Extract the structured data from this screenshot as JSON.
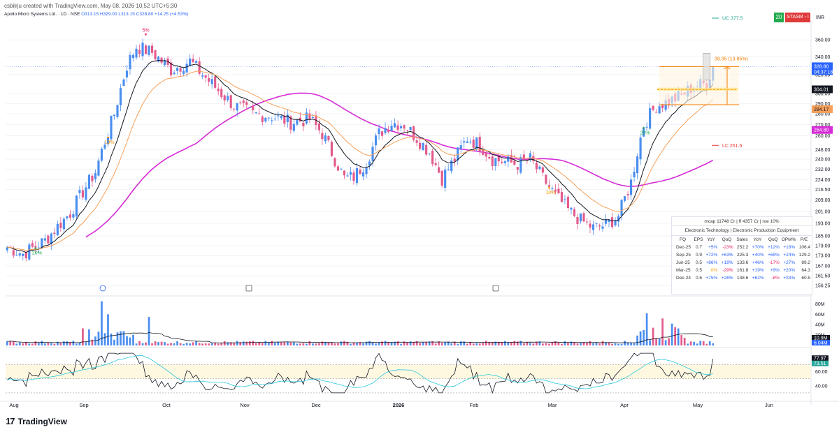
{
  "topline": "csbilrju created with TradingView.com, May 08, 2026 10:52 UTC+5:30",
  "symbol_line": "Apollo Micro Systems Ltd. · 1D · NSE",
  "ohlc": {
    "o": "O313.15",
    "h": "H329.00",
    "l": "L313.15",
    "c": "C328.80",
    "chg": "+14.25 (+4.53%)"
  },
  "badges": {
    "timeframe": "20",
    "stasm": "STASM - I",
    "currency": "INR"
  },
  "brand": "TradingView",
  "price_tags": {
    "uc": "UC 377.5",
    "lc": "LC 251.6",
    "last": "328.80",
    "countdown": "04:37:18",
    "ema_black": "304.01",
    "ema_orange": "284.17",
    "sma_pink": "264.80",
    "measure": "39.95 (13.85%)",
    "vol1": "10.9M",
    "vol2": "6.04M",
    "rsi1": "77.97",
    "rsi2": "73.51"
  },
  "markers": [
    {
      "text": "5%",
      "color": "#e91e63"
    },
    {
      "text": "10%",
      "color": "#ff9800"
    },
    {
      "text": "10%",
      "color": "#ff9800"
    },
    {
      "text": "20%",
      "color": "#22ab4e"
    },
    {
      "text": "20%",
      "color": "#22ab4e"
    }
  ],
  "fundamentals": {
    "header": "mcap 11748 Cr   |   ff 4357 Cr   |   roe 10%",
    "sector": "Electronic Technology   |   Electronic Production Equipment",
    "columns": [
      "FQ",
      "EPS",
      "YoY",
      "QoQ",
      "Sales",
      "YoY",
      "QoQ",
      "OPM%",
      "P/E"
    ],
    "rows": [
      [
        "Dec-25",
        "0.7",
        "+5%",
        "-23%",
        "252.2",
        "+70%",
        "+12%",
        "+18%",
        "106.4"
      ],
      [
        "Sep-25",
        "0.9",
        "+72%",
        "+63%",
        "225.3",
        "+40%",
        "+69%",
        "+24%",
        "129.2"
      ],
      [
        "Jun-25",
        "0.5",
        "+86%",
        "+18%",
        "133.6",
        "+46%",
        "-17%",
        "+27%",
        "89.2"
      ],
      [
        "Mar-25",
        "0.5",
        "0%",
        "-29%",
        "161.8",
        "+19%",
        "+9%",
        "+20%",
        "64.3"
      ],
      [
        "Dec-24",
        "0.6",
        "+75%",
        "+26%",
        "148.6",
        "+62%",
        "-8%",
        "+23%",
        "60.5"
      ]
    ]
  },
  "chart_data": [
    {
      "type": "candlestick",
      "title": "Apollo Micro Systems Ltd. · 1D · NSE",
      "x_ticks": [
        "Aug",
        "Sep",
        "Oct",
        "Nov",
        "Dec",
        "2026",
        "Feb",
        "Mar",
        "Apr",
        "May",
        "Jun"
      ],
      "y_ticks": [
        156.25,
        161.5,
        167.0,
        173.0,
        179.0,
        185.0,
        193.0,
        201.0,
        209.0,
        216.5,
        224.0,
        232.0,
        240.0,
        248.0,
        260.0,
        270.0,
        280.0,
        290.0,
        300.0,
        320.0,
        340.0,
        360.0
      ],
      "ylim": [
        153,
        375
      ],
      "scale": "log",
      "close_anchors": [
        [
          0,
          178
        ],
        [
          5,
          174
        ],
        [
          12,
          182
        ],
        [
          20,
          200
        ],
        [
          28,
          230
        ],
        [
          34,
          280
        ],
        [
          38,
          330
        ],
        [
          41,
          352
        ],
        [
          46,
          345
        ],
        [
          52,
          325
        ],
        [
          58,
          335
        ],
        [
          62,
          320
        ],
        [
          68,
          300
        ],
        [
          72,
          288
        ],
        [
          78,
          280
        ],
        [
          84,
          278
        ],
        [
          90,
          272
        ],
        [
          96,
          275
        ],
        [
          100,
          262
        ],
        [
          104,
          240
        ],
        [
          107,
          225
        ],
        [
          110,
          226
        ],
        [
          114,
          238
        ],
        [
          118,
          262
        ],
        [
          122,
          272
        ],
        [
          126,
          270
        ],
        [
          130,
          258
        ],
        [
          134,
          246
        ],
        [
          138,
          225
        ],
        [
          142,
          240
        ],
        [
          146,
          258
        ],
        [
          150,
          252
        ],
        [
          154,
          240
        ],
        [
          158,
          238
        ],
        [
          162,
          236
        ],
        [
          166,
          240
        ],
        [
          170,
          225
        ],
        [
          174,
          212
        ],
        [
          178,
          202
        ],
        [
          182,
          195
        ],
        [
          186,
          190
        ],
        [
          190,
          192
        ],
        [
          194,
          198
        ],
        [
          198,
          222
        ],
        [
          202,
          270
        ],
        [
          206,
          288
        ],
        [
          210,
          292
        ],
        [
          214,
          298
        ],
        [
          218,
          308
        ],
        [
          222,
          310
        ],
        [
          224,
          328.8
        ]
      ],
      "overlays": [
        {
          "name": "EMA 10",
          "color": "#131722",
          "last": 304.01
        },
        {
          "name": "EMA 21",
          "color": "#f5a05a",
          "last": 284.17
        },
        {
          "name": "SMA 200",
          "color": "#d62bd6",
          "last": 264.8
        }
      ],
      "levels": {
        "uc": 377.5,
        "lc": 251.6,
        "last": 328.8
      }
    },
    {
      "type": "bar",
      "title": "Volume",
      "y_ticks": [
        "80M",
        "60M",
        "40M",
        "20M"
      ],
      "ylim": [
        0,
        90
      ],
      "last": [
        10.9,
        6.04
      ]
    },
    {
      "type": "line",
      "title": "RSI",
      "y_ticks": [
        40.0,
        60.0
      ],
      "ylim": [
        25,
        90
      ],
      "band": [
        50,
        70
      ],
      "last": [
        77.97,
        73.51
      ]
    }
  ]
}
